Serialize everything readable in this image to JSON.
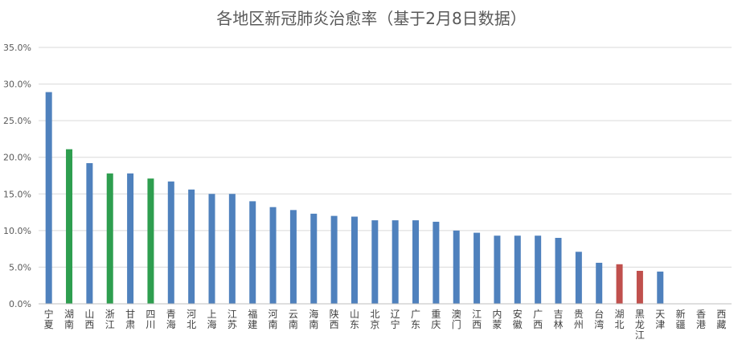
{
  "chart_data": {
    "type": "bar",
    "title": "各地区新冠肺炎治愈率（基于2月8日数据）",
    "xlabel": "",
    "ylabel": "",
    "ylim": [
      0,
      35
    ],
    "yticks": [
      "0.0%",
      "5.0%",
      "10.0%",
      "15.0%",
      "20.0%",
      "25.0%",
      "30.0%",
      "35.0%"
    ],
    "grid": true,
    "legend": "none",
    "categories": [
      "宁夏",
      "湖南",
      "山西",
      "浙江",
      "甘肃",
      "四川",
      "青海",
      "河北",
      "上海",
      "江苏",
      "福建",
      "河南",
      "云南",
      "海南",
      "陕西",
      "山东",
      "北京",
      "辽宁",
      "广东",
      "重庆",
      "澳门",
      "江西",
      "内蒙",
      "安徽",
      "广西",
      "吉林",
      "贵州",
      "台湾",
      "湖北",
      "黑龙江",
      "天津",
      "新疆",
      "香港",
      "西藏"
    ],
    "values": [
      28.9,
      21.1,
      19.2,
      17.8,
      17.8,
      17.1,
      16.7,
      15.6,
      15.0,
      15.0,
      14.0,
      13.2,
      12.8,
      12.3,
      12.0,
      11.9,
      11.4,
      11.4,
      11.4,
      11.2,
      10.0,
      9.7,
      9.3,
      9.3,
      9.3,
      9.0,
      7.1,
      5.6,
      5.4,
      4.5,
      4.4,
      0,
      0,
      0
    ],
    "colors": {
      "default": "#4f81bd",
      "green": "#2e9e4f",
      "red": "#c0504d"
    },
    "highlight": {
      "green": [
        "湖南",
        "浙江",
        "四川"
      ],
      "red": [
        "湖北",
        "黑龙江"
      ]
    }
  }
}
